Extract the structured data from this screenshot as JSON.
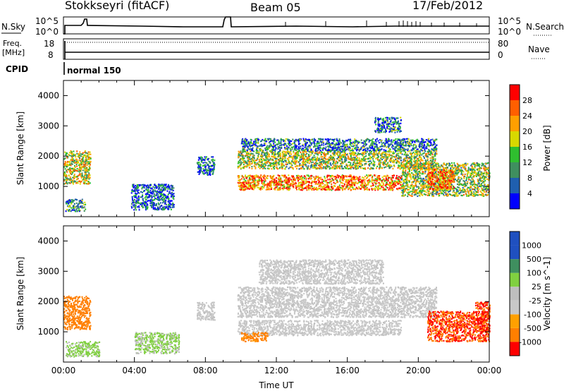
{
  "header": {
    "station": "Stokkseyri (fitACF)",
    "beam": "Beam 05",
    "date": "17/Feb/2012"
  },
  "nsky_panel": {
    "left_label": "N.Sky",
    "tick_top": "10^5",
    "tick_bottom": "10^0",
    "right_label": "N.Search",
    "right_tick_top": "10^5",
    "right_tick_bottom": "10^0"
  },
  "freq_panel": {
    "left_label_1": "Freq.",
    "left_label_2": "[MHz]",
    "left_tick_top": "18",
    "left_tick_bottom": "8",
    "right_label": "Nave",
    "right_tick_top": "80",
    "right_tick_bottom": "0"
  },
  "cpid_panel": {
    "label": "CPID",
    "value": "normal 150"
  },
  "colors": {
    "power": [
      "#0000ff",
      "#1f5faf",
      "#3f8f5f",
      "#2fbf2f",
      "#d8d800",
      "#ff9f00",
      "#ff5f00",
      "#ff0000"
    ],
    "velocity": [
      "#ff0000",
      "#ff7f00",
      "#ffa000",
      "#c8c8c8",
      "#bebebe",
      "#80d040",
      "#3f8f5f",
      "#1f50c0"
    ]
  },
  "chart_data": [
    {
      "type": "heatmap",
      "panel": "power",
      "ylabel": "Slant Range [km]",
      "yticks": [
        "1000",
        "2000",
        "3000",
        "4000"
      ],
      "ylim": [
        0,
        4500
      ],
      "xlim": [
        "00:00",
        "24:00"
      ],
      "colorbar": {
        "label": "Power [dB]",
        "ticks": [
          "4",
          "8",
          "12",
          "16",
          "20",
          "24",
          "28"
        ],
        "range": [
          0,
          32
        ]
      },
      "regions": [
        {
          "t0": 0.0,
          "t1": 1.5,
          "r0": 1100,
          "r1": 2200,
          "level": 0.55
        },
        {
          "t0": 0.1,
          "t1": 1.2,
          "r0": 200,
          "r1": 600,
          "level": 0.3
        },
        {
          "t0": 3.8,
          "t1": 6.2,
          "r0": 250,
          "r1": 1100,
          "level": 0.2
        },
        {
          "t0": 7.5,
          "t1": 8.5,
          "r0": 1400,
          "r1": 2000,
          "level": 0.2
        },
        {
          "t0": 9.8,
          "t1": 19.0,
          "r0": 900,
          "r1": 1400,
          "level": 0.75
        },
        {
          "t0": 9.8,
          "t1": 21.0,
          "r0": 1600,
          "r1": 2200,
          "level": 0.5
        },
        {
          "t0": 10.0,
          "t1": 21.0,
          "r0": 2200,
          "r1": 2600,
          "level": 0.25
        },
        {
          "t0": 17.5,
          "t1": 19.0,
          "r0": 2800,
          "r1": 3300,
          "level": 0.25
        },
        {
          "t0": 19.0,
          "t1": 24.0,
          "r0": 700,
          "r1": 1800,
          "level": 0.5
        },
        {
          "t0": 20.5,
          "t1": 22.0,
          "r0": 900,
          "r1": 1600,
          "level": 0.8
        }
      ]
    },
    {
      "type": "heatmap",
      "panel": "velocity",
      "ylabel": "Slant Range [km]",
      "yticks": [
        "1000",
        "2000",
        "3000",
        "4000"
      ],
      "ylim": [
        0,
        4500
      ],
      "xlabel": "Time UT",
      "xticks": [
        "00:00",
        "04:00",
        "08:00",
        "12:00",
        "16:00",
        "20:00",
        "00:00"
      ],
      "xlim": [
        "00:00",
        "24:00"
      ],
      "colorbar": {
        "label": "Velocity [m s^-1]",
        "ticks": [
          "-1000",
          "-500",
          "-100",
          "-25",
          "25",
          "100",
          "500",
          "1000"
        ]
      },
      "regions": [
        {
          "t0": 0.0,
          "t1": 1.5,
          "r0": 1100,
          "r1": 2200,
          "vel": -300
        },
        {
          "t0": 0.1,
          "t1": 2.0,
          "r0": 200,
          "r1": 700,
          "vel": 150
        },
        {
          "t0": 4.0,
          "t1": 6.5,
          "r0": 300,
          "r1": 1000,
          "vel": 120
        },
        {
          "t0": 7.5,
          "t1": 8.5,
          "r0": 1400,
          "r1": 2000,
          "vel": 10
        },
        {
          "t0": 9.8,
          "t1": 19.0,
          "r0": 900,
          "r1": 1400,
          "vel": 10
        },
        {
          "t0": 9.8,
          "t1": 21.0,
          "r0": 1500,
          "r1": 2500,
          "vel": 10
        },
        {
          "t0": 11.0,
          "t1": 18.0,
          "r0": 2600,
          "r1": 3400,
          "vel": 10
        },
        {
          "t0": 10.0,
          "t1": 11.5,
          "r0": 700,
          "r1": 1000,
          "vel": -200
        },
        {
          "t0": 20.5,
          "t1": 24.0,
          "r0": 700,
          "r1": 1700,
          "vel": -500
        },
        {
          "t0": 23.2,
          "t1": 24.0,
          "r0": 1000,
          "r1": 2000,
          "vel": -600
        }
      ]
    }
  ]
}
